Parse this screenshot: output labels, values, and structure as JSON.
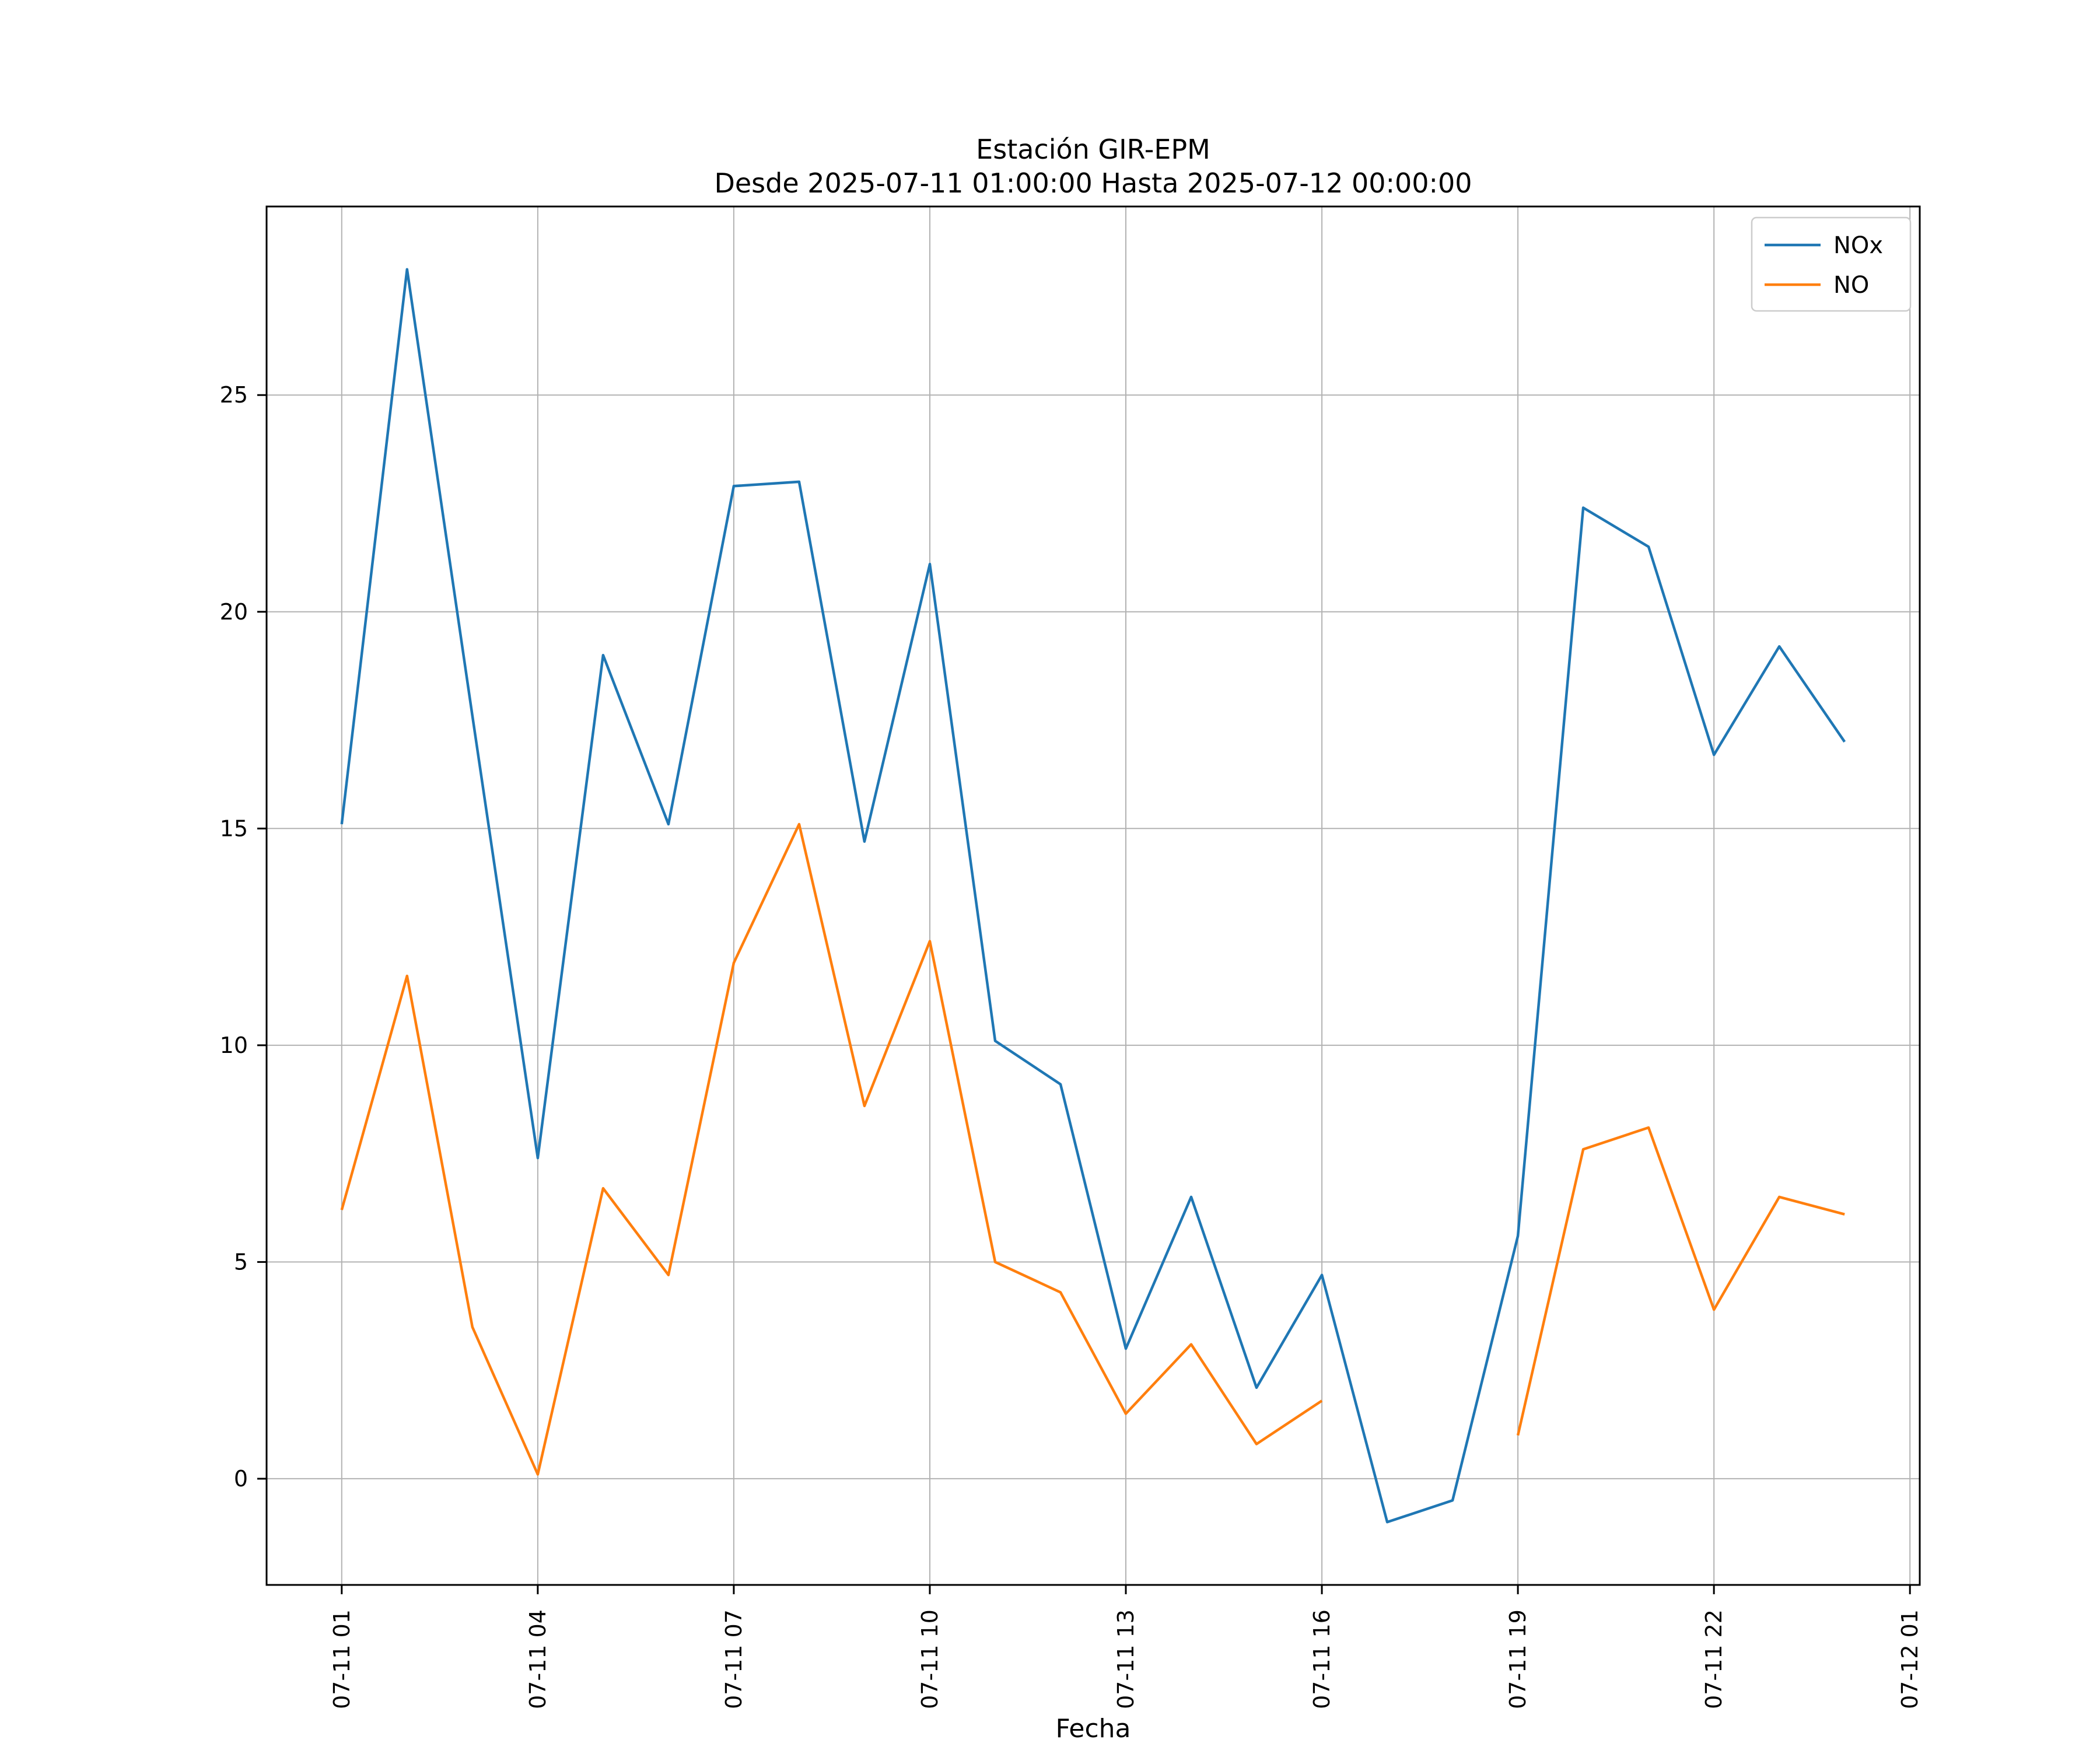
{
  "figure": {
    "title_line1": "Estación GIR-EPM",
    "title_line2": "Desde 2025-07-11 01:00:00 Hasta 2025-07-12 00:00:00",
    "xlabel": "Fecha"
  },
  "colors": {
    "nox": "#1f77b4",
    "no": "#ff7f0e",
    "grid": "#b2b2b2",
    "axis": "#000000",
    "background": "#ffffff",
    "legend_border": "#cccccc"
  },
  "chart_data": {
    "type": "line",
    "title": "Estación GIR-EPM\nDesde 2025-07-11 01:00:00 Hasta 2025-07-12 00:00:00",
    "xlabel": "Fecha",
    "ylabel": "",
    "grid": true,
    "legend_position": "upper right",
    "x_hours": [
      1,
      2,
      3,
      4,
      5,
      6,
      7,
      8,
      9,
      10,
      11,
      12,
      13,
      14,
      15,
      16,
      17,
      18,
      19,
      20,
      21,
      22,
      23,
      24
    ],
    "series": [
      {
        "name": "NOx",
        "color": "#1f77b4",
        "values": [
          15.1,
          27.9,
          17.6,
          7.4,
          19.0,
          15.1,
          22.9,
          23.0,
          14.7,
          21.1,
          10.1,
          9.1,
          3.0,
          6.5,
          2.1,
          4.7,
          -1.0,
          -0.5,
          5.6,
          22.4,
          21.5,
          16.7,
          19.2,
          17.0
        ]
      },
      {
        "name": "NO",
        "color": "#ff7f0e",
        "values": [
          6.2,
          11.6,
          3.5,
          0.1,
          6.7,
          4.7,
          11.9,
          15.1,
          8.6,
          12.4,
          5.0,
          4.3,
          1.5,
          3.1,
          0.8,
          1.8,
          null,
          null,
          1.0,
          7.6,
          8.1,
          3.9,
          6.5,
          6.1
        ]
      }
    ],
    "x_ticks": [
      {
        "pos": 1,
        "label": "07-11 01"
      },
      {
        "pos": 4,
        "label": "07-11 04"
      },
      {
        "pos": 7,
        "label": "07-11 07"
      },
      {
        "pos": 10,
        "label": "07-11 10"
      },
      {
        "pos": 13,
        "label": "07-11 13"
      },
      {
        "pos": 16,
        "label": "07-11 16"
      },
      {
        "pos": 19,
        "label": "07-11 19"
      },
      {
        "pos": 22,
        "label": "07-11 22"
      },
      {
        "pos": 25,
        "label": "07-12 01"
      }
    ],
    "y_ticks": [
      0,
      5,
      10,
      15,
      20,
      25
    ],
    "xlim": [
      -0.15,
      25.15
    ],
    "ylim": [
      -2.45,
      29.35
    ]
  }
}
